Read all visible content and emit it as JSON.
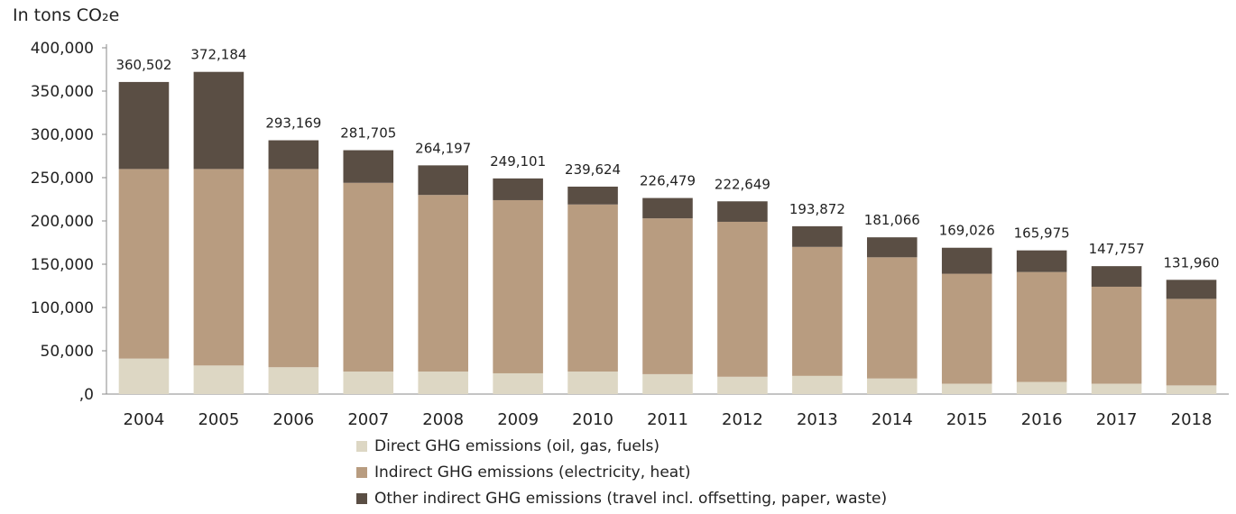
{
  "unit_label": "In tons CO₂e",
  "chart_data": {
    "type": "bar",
    "stacked": true,
    "categories": [
      "2004",
      "2005",
      "2006",
      "2007",
      "2008",
      "2009",
      "2010",
      "2011",
      "2012",
      "2013",
      "2014",
      "2015",
      "2016",
      "2017",
      "2018"
    ],
    "series": [
      {
        "name": "Direct GHG emissions (oil, gas, fuels)",
        "color": "#ddd7c4",
        "values": [
          41000,
          33000,
          31000,
          26000,
          26000,
          24000,
          26000,
          23000,
          20000,
          21000,
          18000,
          12000,
          14000,
          12000,
          10000
        ]
      },
      {
        "name": "Indirect GHG emissions (electricity, heat)",
        "color": "#b89c80",
        "values": [
          219000,
          227000,
          229000,
          218000,
          204000,
          200000,
          193000,
          180000,
          179000,
          149000,
          140000,
          127000,
          127000,
          112000,
          100000
        ]
      },
      {
        "name": "Other indirect GHG emissions (travel incl. offsetting, paper, waste)",
        "color": "#5a4e44",
        "values": [
          100502,
          112184,
          33169,
          37705,
          34197,
          25101,
          20624,
          23479,
          23649,
          23872,
          23066,
          30026,
          24975,
          23757,
          21960
        ]
      }
    ],
    "totals": [
      360502,
      372184,
      293169,
      281705,
      264197,
      249101,
      239624,
      226479,
      222649,
      193872,
      181066,
      169026,
      165975,
      147757,
      131960
    ],
    "total_labels": [
      "360,502",
      "372,184",
      "293,169",
      "281,705",
      "264,197",
      "249,101",
      "239,624",
      "226,479",
      "222,649",
      "193,872",
      "181,066",
      "169,026",
      "165,975",
      "147,757",
      "131,960"
    ],
    "ylim": [
      0,
      400000
    ],
    "yticks": [
      0,
      50000,
      100000,
      150000,
      200000,
      250000,
      300000,
      350000,
      400000
    ],
    "ytick_labels": [
      ",0",
      "50,000",
      "100,000",
      "150,000",
      "200,000",
      "250,000",
      "300,000",
      "350,000",
      "400,000"
    ],
    "grid": false,
    "legend_position": "bottom"
  }
}
